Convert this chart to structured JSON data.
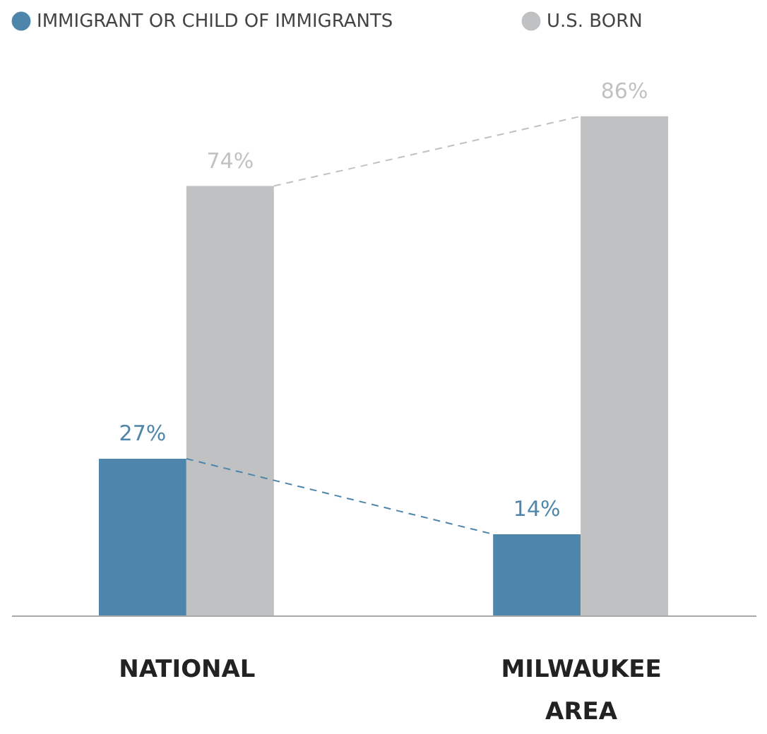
{
  "chart_data": {
    "type": "bar",
    "categories": [
      "NATIONAL",
      "MILWAUKEE AREA"
    ],
    "series": [
      {
        "name": "IMMIGRANT OR CHILD OF IMMIGRANTS",
        "color": "#4e86ab",
        "values": [
          27,
          14
        ],
        "value_labels": [
          "27%",
          "14%"
        ]
      },
      {
        "name": "U.S. BORN",
        "color": "#c0c1c3",
        "values": [
          74,
          86
        ],
        "value_labels": [
          "74%",
          "86%"
        ]
      }
    ],
    "legend": "top",
    "line_style": "dashed",
    "grid": false
  }
}
